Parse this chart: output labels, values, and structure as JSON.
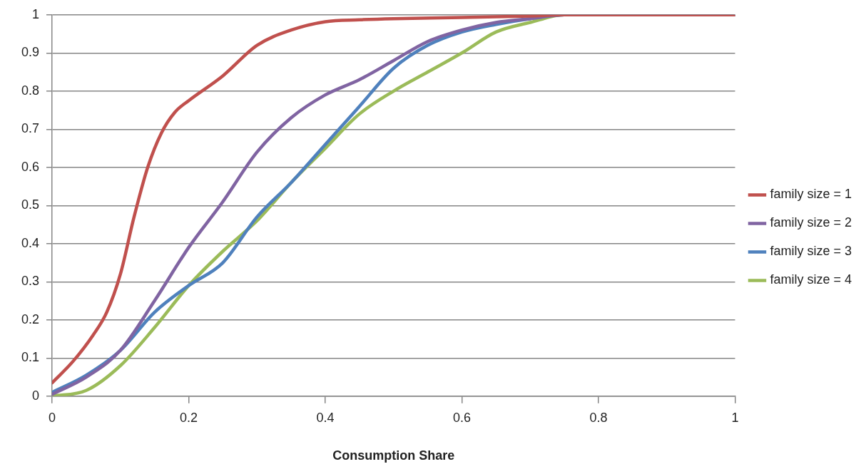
{
  "chart_data": {
    "type": "line",
    "xlabel": "Consumption Share",
    "xlim": [
      0,
      1
    ],
    "xticks": [
      0,
      0.2,
      0.4,
      0.6,
      0.8,
      1
    ],
    "ylim": [
      0,
      1
    ],
    "yticks": [
      0,
      0.1,
      0.2,
      0.3,
      0.4,
      0.5,
      0.6,
      0.7,
      0.8,
      0.9,
      1
    ],
    "grid": "y",
    "legend": "right",
    "marker": "none",
    "line_style": "solid",
    "series": [
      {
        "name": "family size = 1",
        "color": "#c0504d",
        "x": [
          0,
          0.03,
          0.06,
          0.08,
          0.1,
          0.12,
          0.14,
          0.16,
          0.18,
          0.2,
          0.25,
          0.3,
          0.35,
          0.4,
          0.45,
          0.5,
          0.6,
          0.7,
          0.75,
          1
        ],
        "values": [
          0.035,
          0.09,
          0.16,
          0.22,
          0.32,
          0.47,
          0.6,
          0.69,
          0.745,
          0.775,
          0.84,
          0.92,
          0.96,
          0.982,
          0.987,
          0.99,
          0.993,
          0.997,
          1,
          1
        ]
      },
      {
        "name": "family size = 2",
        "color": "#8064a2",
        "x": [
          0,
          0.05,
          0.1,
          0.15,
          0.2,
          0.25,
          0.3,
          0.35,
          0.4,
          0.45,
          0.5,
          0.55,
          0.6,
          0.65,
          0.7,
          0.75,
          1
        ],
        "values": [
          0.005,
          0.05,
          0.12,
          0.25,
          0.39,
          0.51,
          0.64,
          0.73,
          0.79,
          0.83,
          0.88,
          0.93,
          0.96,
          0.98,
          0.99,
          1,
          1
        ]
      },
      {
        "name": "family size = 3",
        "color": "#4f81bd",
        "x": [
          0,
          0.05,
          0.1,
          0.15,
          0.2,
          0.25,
          0.3,
          0.35,
          0.4,
          0.45,
          0.5,
          0.55,
          0.6,
          0.65,
          0.7,
          0.75,
          1
        ],
        "values": [
          0.01,
          0.055,
          0.12,
          0.22,
          0.29,
          0.35,
          0.47,
          0.56,
          0.66,
          0.76,
          0.86,
          0.92,
          0.955,
          0.975,
          0.99,
          1,
          1
        ]
      },
      {
        "name": "family size = 4",
        "color": "#9bbb59",
        "x": [
          0,
          0.05,
          0.1,
          0.15,
          0.2,
          0.25,
          0.3,
          0.35,
          0.4,
          0.45,
          0.5,
          0.55,
          0.6,
          0.65,
          0.7,
          0.75,
          1
        ],
        "values": [
          0,
          0.015,
          0.08,
          0.18,
          0.29,
          0.38,
          0.46,
          0.56,
          0.65,
          0.74,
          0.8,
          0.85,
          0.9,
          0.955,
          0.98,
          1,
          1
        ]
      }
    ]
  }
}
